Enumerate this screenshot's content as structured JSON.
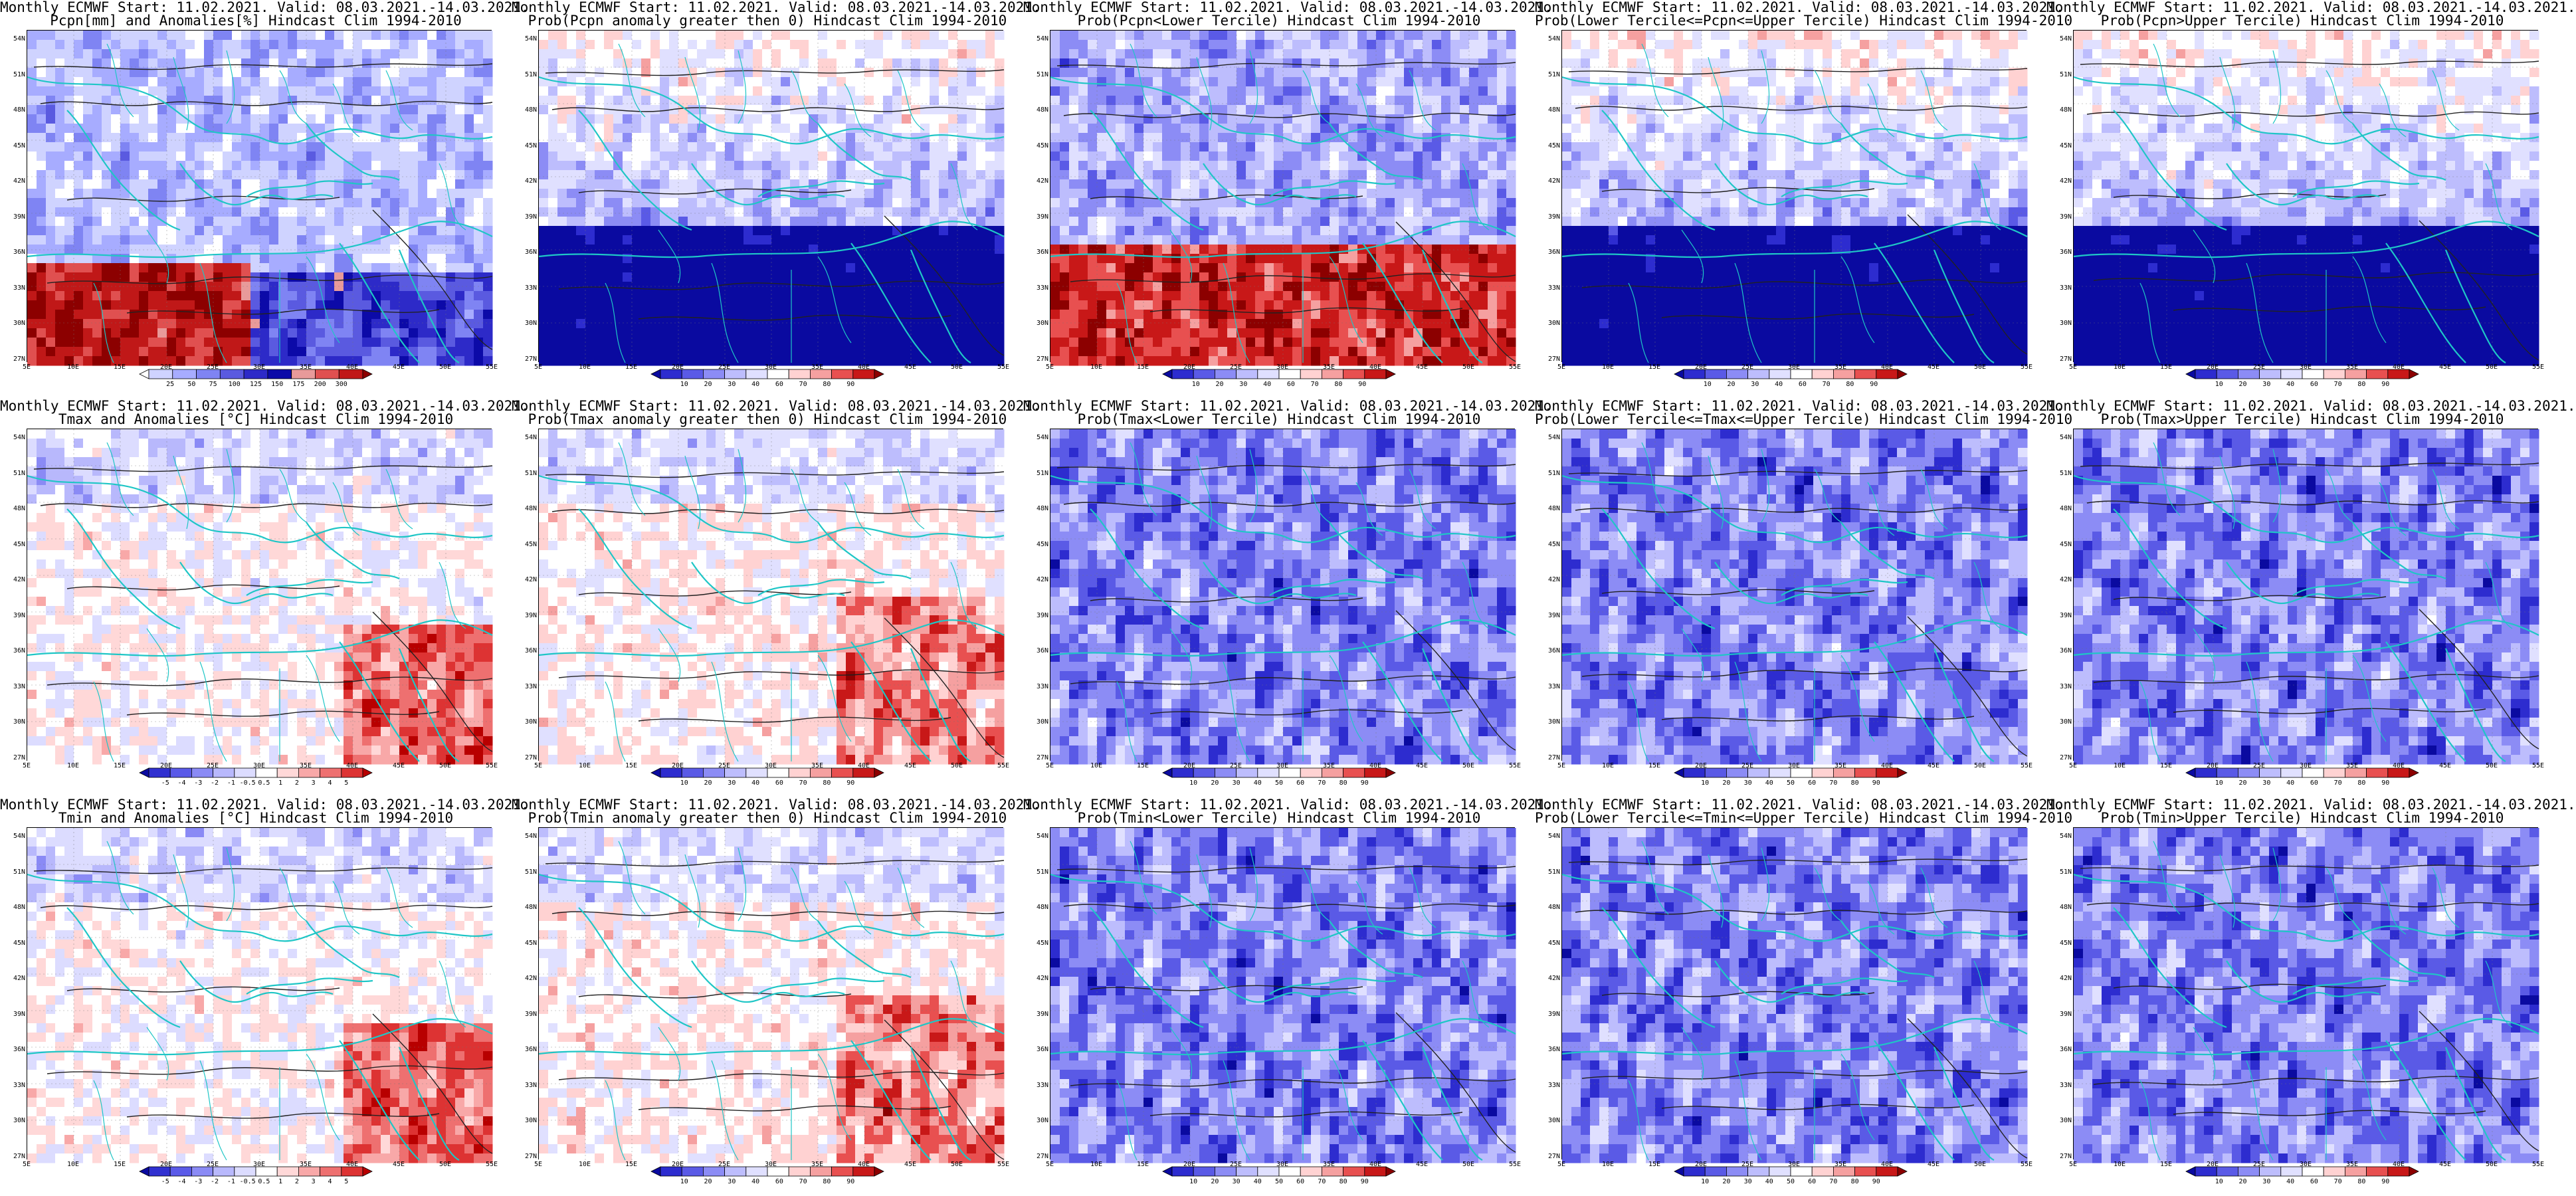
{
  "map": {
    "lat_labels": [
      "54N",
      "51N",
      "48N",
      "45N",
      "42N",
      "39N",
      "36N",
      "33N",
      "30N",
      "27N"
    ],
    "lon_labels": [
      "5E",
      "10E",
      "15E",
      "20E",
      "25E",
      "30E",
      "35E",
      "40E",
      "45E",
      "50E",
      "55E"
    ]
  },
  "palettes": {
    "precip": [
      "#ffffff",
      "#cfd3ff",
      "#a7acff",
      "#7f84f3",
      "#5a5ae0",
      "#2d2ac8",
      "#0c0aa8",
      "#e89a9a",
      "#e05050",
      "#c01818",
      "#8c0000"
    ],
    "prob": [
      "#0a0aa0",
      "#2d2ccf",
      "#5a5ae6",
      "#8c8cf5",
      "#bdbdfd",
      "#e0e0ff",
      "#ffffff",
      "#ffd2d2",
      "#f5a0a0",
      "#e85050",
      "#c81818",
      "#8c0000"
    ],
    "temp": [
      "#0a0aa0",
      "#3030d0",
      "#5a5ae8",
      "#8a8af5",
      "#b8b8fc",
      "#dcdcff",
      "#ffffff",
      "#ffd8d8",
      "#f8a8a8",
      "#ee7070",
      "#dd3333",
      "#b80000"
    ]
  },
  "panels": [
    {
      "id": "pcpn-anom",
      "title1": "Monthly ECMWF Start: 11.02.2021. Valid: 08.03.2021.-14.03.2021.",
      "title2": "Pcpn[mm] and Anomalies[%] Hindcast Clim 1994-2010",
      "palette": "precip",
      "scheme": "pcpn_anom",
      "cbar_labels": [
        "25",
        "50",
        "75",
        "100",
        "125",
        "150",
        "175",
        "200",
        "300"
      ]
    },
    {
      "id": "pcpn-prob-gt0",
      "title1": "Monthly ECMWF Start: 11.02.2021. Valid: 08.03.2021.-14.03.2021.",
      "title2": "Prob(Pcpn anomaly greater then 0) Hindcast Clim 1994-2010",
      "palette": "prob",
      "scheme": "pcpn_wet",
      "cbar_labels": [
        "10",
        "20",
        "30",
        "40",
        "60",
        "70",
        "80",
        "90"
      ]
    },
    {
      "id": "pcpn-prob-lower",
      "title1": "Monthly ECMWF Start: 11.02.2021. Valid: 08.03.2021.-14.03.2021.",
      "title2": "Prob(Pcpn<Lower Tercile) Hindcast Clim 1994-2010",
      "palette": "prob",
      "scheme": "pcpn_dry",
      "cbar_labels": [
        "10",
        "20",
        "30",
        "40",
        "60",
        "70",
        "80",
        "90"
      ]
    },
    {
      "id": "pcpn-prob-middle",
      "title1": "Monthly ECMWF Start: 11.02.2021. Valid: 08.03.2021.-14.03.2021.",
      "title2": "Prob(Lower Tercile<=Pcpn<=Upper Tercile) Hindcast Clim 1994-2010",
      "palette": "prob",
      "scheme": "pcpn_wet",
      "cbar_labels": [
        "10",
        "20",
        "30",
        "40",
        "60",
        "70",
        "80",
        "90"
      ]
    },
    {
      "id": "pcpn-prob-upper",
      "title1": "Monthly ECMWF Start: 11.02.2021. Valid: 08.03.2021.-14.03.2021.",
      "title2": "Prob(Pcpn>Upper Tercile) Hindcast Clim 1994-2010",
      "palette": "prob",
      "scheme": "pcpn_wet",
      "cbar_labels": [
        "10",
        "20",
        "30",
        "40",
        "60",
        "70",
        "80",
        "90"
      ]
    },
    {
      "id": "tmax-anom",
      "title1": "Monthly ECMWF Start: 11.02.2021. Valid: 08.03.2021.-14.03.2021.",
      "title2": "Tmax and Anomalies [°C] Hindcast Clim 1994-2010",
      "palette": "temp",
      "scheme": "temp_anom",
      "cbar_labels": [
        "-5",
        "-4",
        "-3",
        "-2",
        "-1",
        "-0.5",
        "0.5",
        "1",
        "2",
        "3",
        "4",
        "5"
      ]
    },
    {
      "id": "tmax-prob-gt0",
      "title1": "Monthly ECMWF Start: 11.02.2021. Valid: 08.03.2021.-14.03.2021.",
      "title2": "Prob(Tmax anomaly greater then 0) Hindcast Clim 1994-2010",
      "palette": "prob",
      "scheme": "temp_gt0",
      "cbar_labels": [
        "10",
        "20",
        "30",
        "40",
        "60",
        "70",
        "80",
        "90"
      ]
    },
    {
      "id": "tmax-prob-lower",
      "title1": "Monthly ECMWF Start: 11.02.2021. Valid: 08.03.2021.-14.03.2021.",
      "title2": "Prob(Tmax<Lower Tercile) Hindcast Clim 1994-2010",
      "palette": "prob",
      "scheme": "temp_blue",
      "cbar_labels": [
        "10",
        "20",
        "30",
        "40",
        "50",
        "60",
        "70",
        "80",
        "90"
      ]
    },
    {
      "id": "tmax-prob-middle",
      "title1": "Monthly ECMWF Start: 11.02.2021. Valid: 08.03.2021.-14.03.2021.",
      "title2": "Prob(Lower Tercile<=Tmax<=Upper Tercile) Hindcast Clim 1994-2010",
      "palette": "prob",
      "scheme": "temp_blue",
      "cbar_labels": [
        "10",
        "20",
        "30",
        "40",
        "50",
        "60",
        "70",
        "80",
        "90"
      ]
    },
    {
      "id": "tmax-prob-upper",
      "title1": "Monthly ECMWF Start: 11.02.2021. Valid: 08.03.2021.-14.03.2021.",
      "title2": "Prob(Tmax>Upper Tercile) Hindcast Clim 1994-2010",
      "palette": "prob",
      "scheme": "temp_blue",
      "cbar_labels": [
        "10",
        "20",
        "30",
        "40",
        "60",
        "70",
        "80",
        "90"
      ]
    },
    {
      "id": "tmin-anom",
      "title1": "Monthly ECMWF Start: 11.02.2021. Valid: 08.03.2021.-14.03.2021.",
      "title2": "Tmin and Anomalies [°C] Hindcast Clim 1994-2010",
      "palette": "temp",
      "scheme": "temp_anom",
      "cbar_labels": [
        "-5",
        "-4",
        "-3",
        "-2",
        "-1",
        "-0.5",
        "0.5",
        "1",
        "2",
        "3",
        "4",
        "5"
      ]
    },
    {
      "id": "tmin-prob-gt0",
      "title1": "Monthly ECMWF Start: 11.02.2021. Valid: 08.03.2021.-14.03.2021.",
      "title2": "Prob(Tmin anomaly greater then 0) Hindcast Clim 1994-2010",
      "palette": "prob",
      "scheme": "temp_gt0",
      "cbar_labels": [
        "10",
        "20",
        "30",
        "40",
        "60",
        "70",
        "80",
        "90"
      ]
    },
    {
      "id": "tmin-prob-lower",
      "title1": "Monthly ECMWF Start: 11.02.2021. Valid: 08.03.2021.-14.03.2021.",
      "title2": "Prob(Tmin<Lower Tercile) Hindcast Clim 1994-2010",
      "palette": "prob",
      "scheme": "temp_blue",
      "cbar_labels": [
        "10",
        "20",
        "30",
        "40",
        "50",
        "60",
        "70",
        "80",
        "90"
      ]
    },
    {
      "id": "tmin-prob-middle",
      "title1": "Monthly ECMWF Start: 11.02.2021. Valid: 08.03.2021.-14.03.2021.",
      "title2": "Prob(Lower Tercile<=Tmin<=Upper Tercile) Hindcast Clim 1994-2010",
      "palette": "prob",
      "scheme": "temp_blue",
      "cbar_labels": [
        "10",
        "20",
        "30",
        "40",
        "50",
        "60",
        "70",
        "80",
        "90"
      ]
    },
    {
      "id": "tmin-prob-upper",
      "title1": "Monthly ECMWF Start: 11.02.2021. Valid: 08.03.2021.-14.03.2021.",
      "title2": "Prob(Tmin>Upper Tercile) Hindcast Clim 1994-2010",
      "palette": "prob",
      "scheme": "temp_blue",
      "cbar_labels": [
        "10",
        "20",
        "30",
        "40",
        "60",
        "70",
        "80",
        "90"
      ]
    }
  ]
}
